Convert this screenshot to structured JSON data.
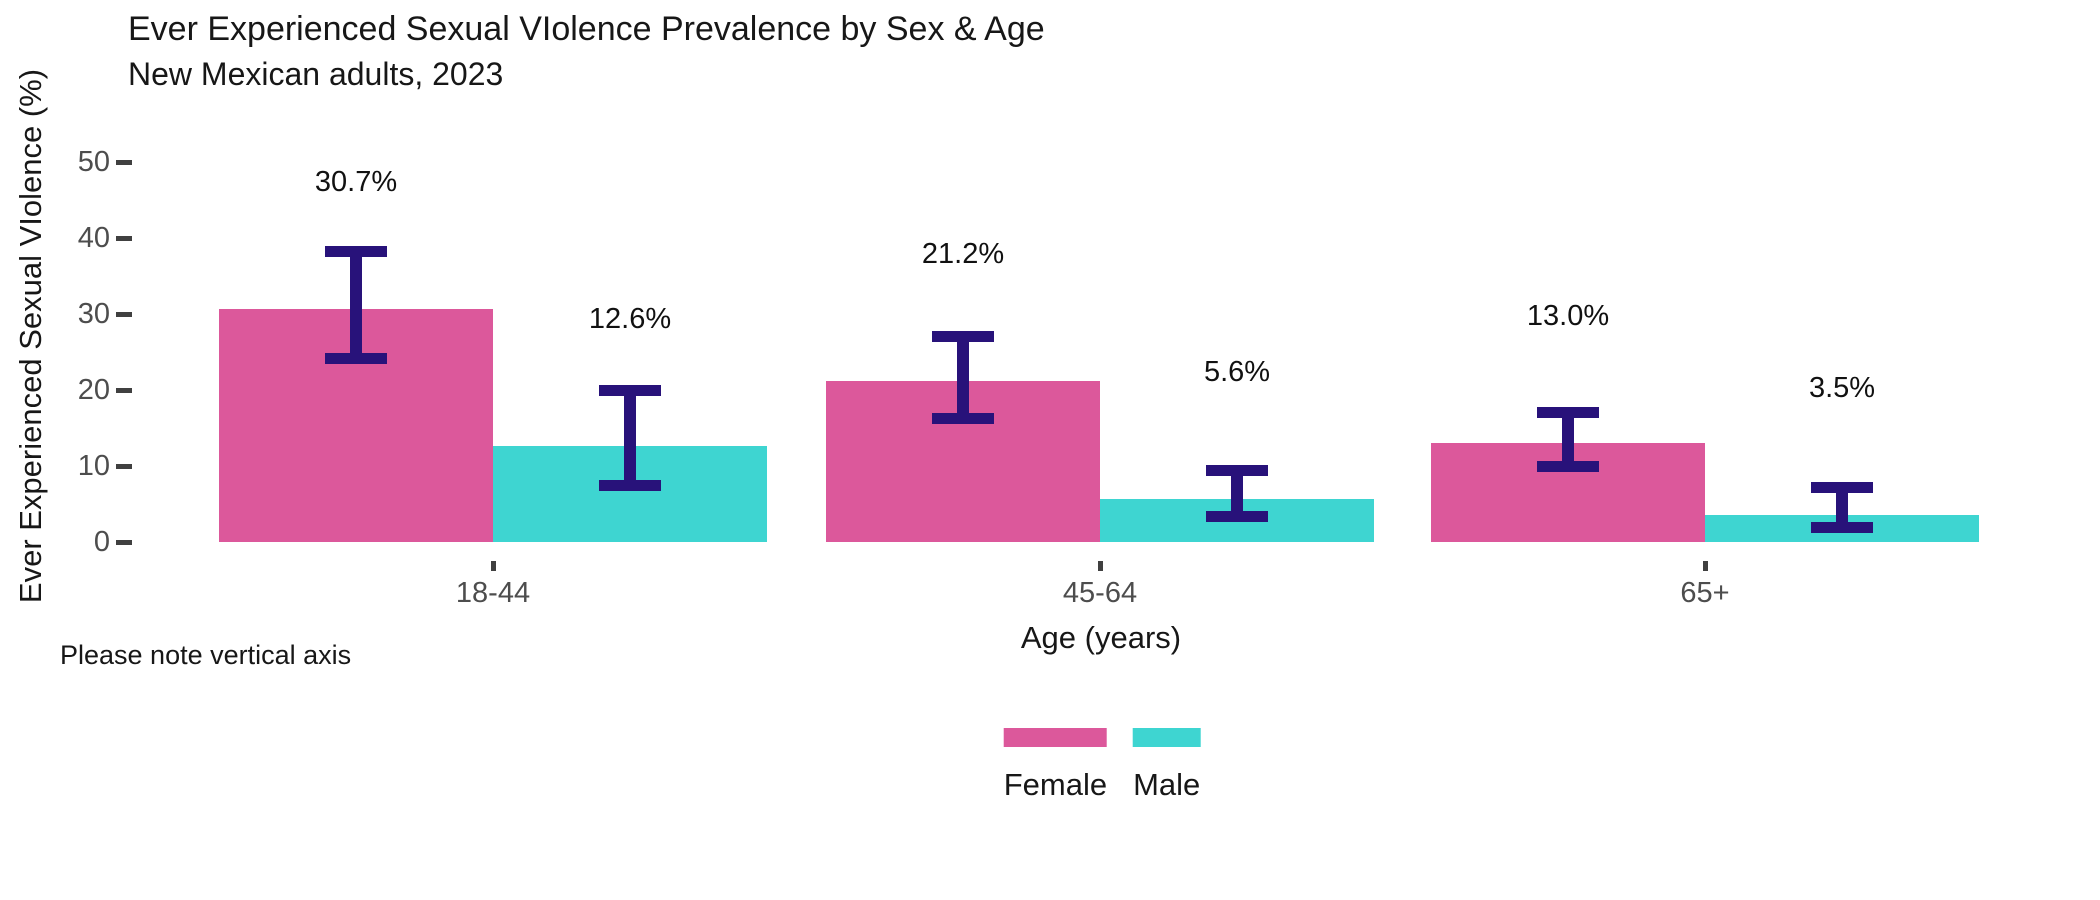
{
  "page": {
    "background": "#ffffff"
  },
  "chart_data": {
    "type": "bar",
    "title": "Ever Experienced Sexual VIolence Prevalence by Sex & Age",
    "subtitle": "New Mexican adults, 2023",
    "xlabel": "Age (years)",
    "ylabel": "Ever Experienced Sexual VIolence (%)",
    "footnote": "Please note vertical axis",
    "categories": [
      "18-44",
      "45-64",
      "65+"
    ],
    "y_ticks": [
      0,
      10,
      20,
      30,
      40,
      50
    ],
    "ylim": [
      0,
      50
    ],
    "grid": false,
    "legend_position": "bottom-center",
    "value_unit": "%",
    "colors": {
      "female": "#DC589B",
      "male": "#3ED5D1",
      "error_bar": "#28127A",
      "axis_text": "#4D4D4D",
      "text": "#171717"
    },
    "series": [
      {
        "name": "Female",
        "color": "#DC589B",
        "values": [
          30.7,
          21.2,
          13.0
        ],
        "value_labels": [
          "30.7%",
          "21.2%",
          "13.0%"
        ],
        "ci_low": [
          24.1,
          16.3,
          9.9
        ],
        "ci_high": [
          38.2,
          27.1,
          17.0
        ]
      },
      {
        "name": "Male",
        "color": "#3ED5D1",
        "values": [
          12.6,
          5.6,
          3.5
        ],
        "value_labels": [
          "12.6%",
          "5.6%",
          "3.5%"
        ],
        "ci_low": [
          7.5,
          3.4,
          1.9
        ],
        "ci_high": [
          20.0,
          9.4,
          7.2
        ]
      }
    ]
  }
}
